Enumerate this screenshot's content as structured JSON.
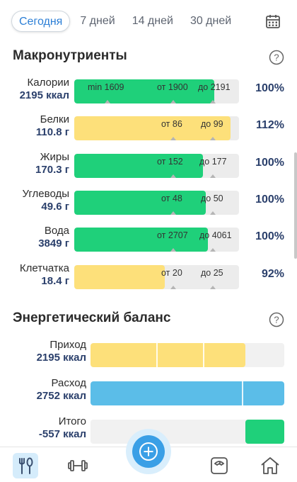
{
  "tabs": [
    {
      "label": "Сегодня",
      "active": true
    },
    {
      "label": "7 дней"
    },
    {
      "label": "14 дней"
    },
    {
      "label": "30 дней"
    }
  ],
  "macros": {
    "title": "Макронутриенты",
    "rows": [
      {
        "name": "Калории",
        "value": "2195 ккал",
        "percent": "100%",
        "color": "#1fd07a",
        "fill": 0.85,
        "marks": [
          {
            "text": "min 1609",
            "pos": 0.08,
            "tick": 0.2
          },
          {
            "text": "от 1900",
            "pos": 0.5,
            "tick": 0.6
          },
          {
            "text": "до 2191",
            "pos": 0.75,
            "tick": 0.84
          }
        ]
      },
      {
        "name": "Белки",
        "value": "110.8 г",
        "percent": "112%",
        "color": "#fde07a",
        "fill": 0.95,
        "marks": [
          {
            "text": "от 86",
            "pos": 0.53,
            "tick": 0.6
          },
          {
            "text": "до 99",
            "pos": 0.77,
            "tick": 0.84
          }
        ]
      },
      {
        "name": "Жиры",
        "value": "170.3 г",
        "percent": "100%",
        "color": "#1fd07a",
        "fill": 0.78,
        "marks": [
          {
            "text": "от 152",
            "pos": 0.5,
            "tick": 0.6
          },
          {
            "text": "до 177",
            "pos": 0.76,
            "tick": 0.84
          }
        ]
      },
      {
        "name": "Углеводы",
        "value": "49.6 г",
        "percent": "100%",
        "color": "#1fd07a",
        "fill": 0.8,
        "marks": [
          {
            "text": "от 48",
            "pos": 0.53,
            "tick": 0.6
          },
          {
            "text": "до 50",
            "pos": 0.77,
            "tick": 0.84
          }
        ]
      },
      {
        "name": "Вода",
        "value": "3849 г",
        "percent": "100%",
        "color": "#1fd07a",
        "fill": 0.81,
        "marks": [
          {
            "text": "от 2707",
            "pos": 0.5,
            "tick": 0.6
          },
          {
            "text": "до 4061",
            "pos": 0.76,
            "tick": 0.84
          }
        ]
      },
      {
        "name": "Клетчатка",
        "value": "18.4 г",
        "percent": "92%",
        "color": "#fde07a",
        "fill": 0.55,
        "marks": [
          {
            "text": "от 20",
            "pos": 0.53,
            "tick": 0.6
          },
          {
            "text": "до 25",
            "pos": 0.77,
            "tick": 0.84
          }
        ]
      }
    ]
  },
  "energy": {
    "title": "Энергетический баланс",
    "rows": [
      {
        "name": "Приход",
        "value": "2195 ккал",
        "color": "#fde07a",
        "start": 0,
        "fill": 0.8,
        "seps": [
          0.34,
          0.58
        ]
      },
      {
        "name": "Расход",
        "value": "2752 ккал",
        "color": "#5bbde8",
        "start": 0,
        "fill": 1.0,
        "seps": [
          0.78
        ]
      },
      {
        "name": "Итого",
        "value": "-557 ккал",
        "color": "#1fd07a",
        "start": 0.8,
        "fill": 0.2,
        "seps": []
      }
    ]
  },
  "icons": {
    "calendar": "calendar-icon",
    "help": "question-circle-icon",
    "nav": [
      "fork-spoon-icon",
      "dumbbell-icon",
      "plus-circle-icon",
      "scale-icon",
      "home-icon"
    ]
  }
}
